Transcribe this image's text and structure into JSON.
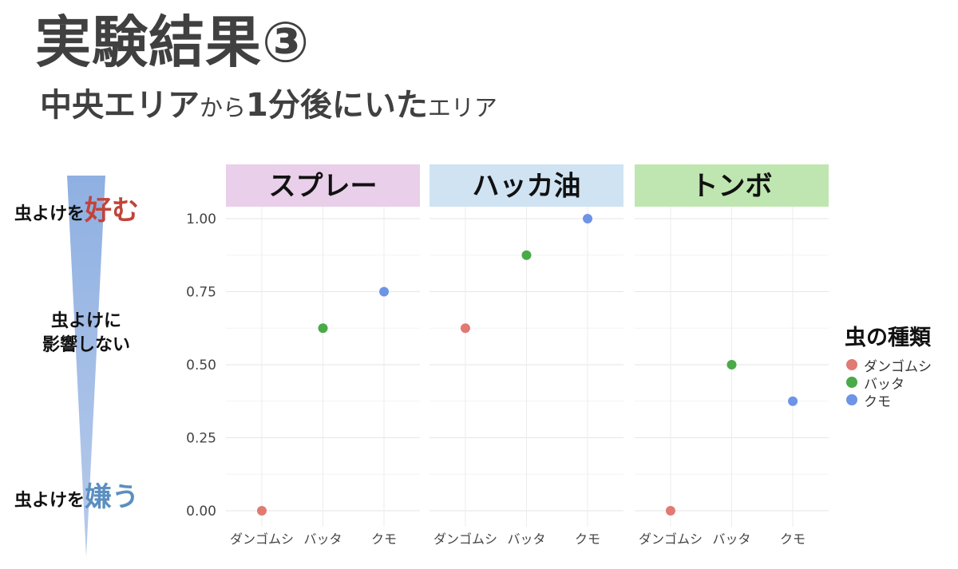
{
  "header": {
    "title": "実験結果③",
    "subtitle_parts": [
      {
        "text": "中央エリア",
        "size": "big"
      },
      {
        "text": "から",
        "size": "small"
      },
      {
        "text": "1分後にいた",
        "size": "big"
      },
      {
        "text": "エリア",
        "size": "small"
      }
    ]
  },
  "scale": {
    "top_prefix": "虫よけを",
    "top_emph": "好む",
    "mid_line1": "虫よけに",
    "mid_line2": "影響しない",
    "bottom_prefix": "虫よけを",
    "bottom_emph": "嫌う"
  },
  "legend": {
    "title": "虫の種類",
    "items": [
      {
        "label": "ダンゴムシ",
        "color": "#e07a72"
      },
      {
        "label": "バッタ",
        "color": "#4aaa48"
      },
      {
        "label": "クモ",
        "color": "#6d94e6"
      }
    ]
  },
  "chart_data": {
    "type": "scatter",
    "categories": [
      "ダンゴムシ",
      "バッタ",
      "クモ"
    ],
    "yticks": [
      "1.00",
      "0.75",
      "0.50",
      "0.25",
      "0.00"
    ],
    "ylim": [
      0,
      1
    ],
    "grid": true,
    "legend_position": "right",
    "panels": [
      {
        "label": "スプレー",
        "color": "#e9cfe9",
        "values": [
          0.0,
          0.625,
          0.75
        ]
      },
      {
        "label": "ハッカ油",
        "color": "#cfe3f2",
        "values": [
          0.625,
          0.875,
          1.0
        ]
      },
      {
        "label": "トンボ",
        "color": "#bfe6b0",
        "values": [
          0.0,
          0.5,
          0.375
        ]
      }
    ],
    "series": [
      {
        "name": "ダンゴムシ",
        "color": "#e07a72"
      },
      {
        "name": "バッタ",
        "color": "#4aaa48"
      },
      {
        "name": "クモ",
        "color": "#6d94e6"
      }
    ]
  }
}
